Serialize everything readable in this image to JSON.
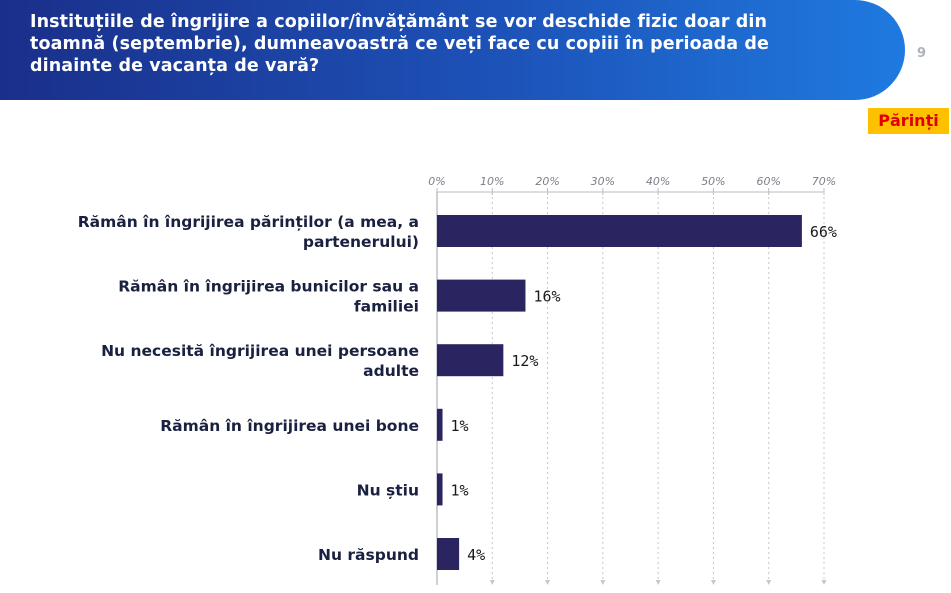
{
  "header": {
    "title": "Instituțiile de îngrijire a copiilor/învățământ se vor deschide fizic doar din toamnă (septembrie), dumneavoastră ce veți face cu copiii în perioada de dinainte de vacanța de vară?",
    "page_number": "9"
  },
  "badge": {
    "label": "Părinți"
  },
  "colors": {
    "bar": "#2a2460",
    "header_start": "#1a2f8a",
    "header_end": "#1e7ae0",
    "badge_bg": "#ffc000",
    "badge_text": "#e00000"
  },
  "chart_data": {
    "type": "bar",
    "orientation": "horizontal",
    "categories": [
      [
        "Rămân în îngrijirea părinților (a mea, a",
        "partenerului)"
      ],
      [
        "Rămân în îngrijirea bunicilor sau a",
        "familiei"
      ],
      [
        "Nu necesită îngrijirea unei persoane",
        "adulte"
      ],
      [
        "Rămân în îngrijirea unei bone"
      ],
      [
        "Nu știu"
      ],
      [
        "Nu răspund"
      ]
    ],
    "values": [
      66,
      16,
      12,
      1,
      1,
      4
    ],
    "value_labels": [
      "66%",
      "16%",
      "12%",
      "1%",
      "1%",
      "4%"
    ],
    "x_ticks": [
      "0%",
      "10%",
      "20%",
      "30%",
      "40%",
      "50%",
      "60%",
      "70%"
    ],
    "xlim": [
      0,
      70
    ],
    "grid": true,
    "axis_position": "top"
  }
}
